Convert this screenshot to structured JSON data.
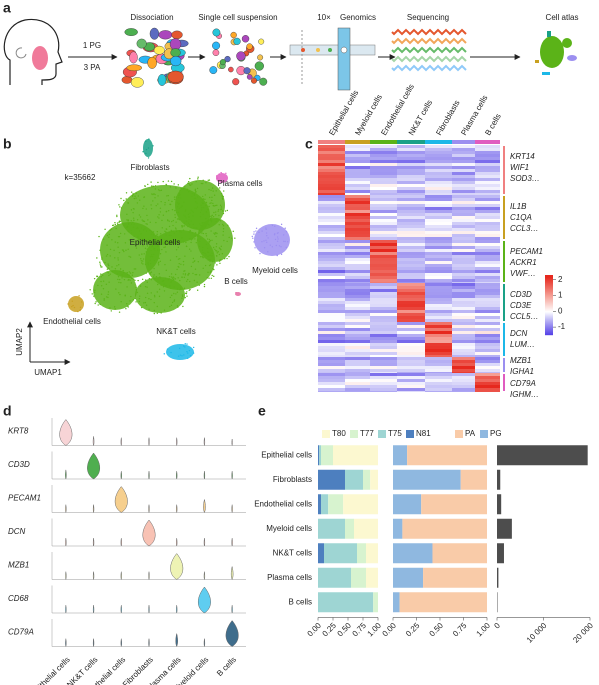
{
  "figure": {
    "panel_labels": [
      "a",
      "b",
      "c",
      "d",
      "e"
    ],
    "a": {
      "groups": [
        "1 PG",
        "3 PA"
      ],
      "steps": [
        "Dissociation",
        "Single cell suspension",
        "10×",
        "Genomics",
        "Sequencing",
        "Cell atlas"
      ]
    },
    "b": {
      "count_label": "k=35662",
      "x_label": "UMAP1",
      "y_label": "UMAP2",
      "clusters": [
        {
          "name": "Fibroblasts",
          "color": "#1aa187"
        },
        {
          "name": "Plasma cells",
          "color": "#e05cc0"
        },
        {
          "name": "Epithelial cells",
          "color": "#5bb318"
        },
        {
          "name": "Myeloid cells",
          "color": "#9c8ff0"
        },
        {
          "name": "B cells",
          "color": "#e46aa0"
        },
        {
          "name": "Endothelial cells",
          "color": "#c8a020"
        },
        {
          "name": "NK&T cells",
          "color": "#1cb8e8"
        }
      ]
    },
    "c": {
      "columns": [
        {
          "name": "Epithelial cells",
          "color": "#f08080"
        },
        {
          "name": "Myeloid cells",
          "color": "#c8a020"
        },
        {
          "name": "Endothelial cells",
          "color": "#5bb318"
        },
        {
          "name": "NK&T cells",
          "color": "#1aa187"
        },
        {
          "name": "Fibroblasts",
          "color": "#1cb8e8"
        },
        {
          "name": "Plasma cells",
          "color": "#9c8ff0"
        },
        {
          "name": "B cells",
          "color": "#e05cc0"
        }
      ],
      "genes": [
        [
          "KRT14",
          "WIF1",
          "SOD3…"
        ],
        [
          "IL1B",
          "C1QA",
          "CCL3…"
        ],
        [
          "PECAM1",
          "ACKR1",
          "VWF…"
        ],
        [
          "CD3D",
          "CD3E",
          "CCL5…"
        ],
        [
          "DCN",
          "LUM…"
        ],
        [
          "MZB1",
          "IGHA1"
        ],
        [
          "CD79A",
          "IGHM…"
        ]
      ],
      "scale_ticks": [
        2,
        1,
        0,
        -1
      ]
    }
  },
  "chart_data": [
    {
      "type": "violin",
      "categories": [
        "Epithelial cells",
        "NK&T cells",
        "Endothelial cells",
        "Fibroblasts",
        "Plasma cells",
        "Myeloid cells",
        "B cells"
      ],
      "series": [
        {
          "name": "KRT8",
          "color": "#f7d4d6",
          "values": [
            1,
            0.35,
            0.3,
            0.3,
            0.3,
            0.3,
            0.25
          ]
        },
        {
          "name": "CD3D",
          "color": "#4fae4f",
          "values": [
            0.35,
            1,
            0.3,
            0.3,
            0.3,
            0.3,
            0.3
          ]
        },
        {
          "name": "PECAM1",
          "color": "#f6cf8e",
          "values": [
            0.3,
            0.3,
            1,
            0.3,
            0.3,
            0.5,
            0.3
          ]
        },
        {
          "name": "DCN",
          "color": "#f8c2b4",
          "values": [
            0.3,
            0.3,
            0.3,
            1,
            0.3,
            0.3,
            0.3
          ]
        },
        {
          "name": "MZB1",
          "color": "#eef3b4",
          "values": [
            0.3,
            0.3,
            0.3,
            0.3,
            1,
            0.3,
            0.5
          ]
        },
        {
          "name": "CD68",
          "color": "#5fcdf0",
          "values": [
            0.3,
            0.3,
            0.3,
            0.3,
            0.3,
            1,
            0.3
          ]
        },
        {
          "name": "CD79A",
          "color": "#3f6d8c",
          "values": [
            0.3,
            0.3,
            0.3,
            0.3,
            0.5,
            0.3,
            1
          ]
        }
      ]
    },
    {
      "type": "bar_panels",
      "categories": [
        "Epithelial cells",
        "Fibroblasts",
        "Endothelial cells",
        "Myeloid cells",
        "NK&T cells",
        "Plasma cells",
        "B cells"
      ],
      "panels": [
        {
          "stacked": true,
          "xlim": [
            0,
            1
          ],
          "xticks": [
            {
              "value": 0,
              "label": "0.00"
            },
            {
              "value": 0.25,
              "label": "0.25"
            },
            {
              "value": 0.5,
              "label": "0.50"
            },
            {
              "value": 0.75,
              "label": "0.75"
            },
            {
              "value": 1,
              "label": "1.00"
            }
          ],
          "series": [
            {
              "name": "N81",
              "color": "#4d7fbf",
              "values": [
                0.02,
                0.45,
                0.05,
                0,
                0.1,
                0,
                0
              ]
            },
            {
              "name": "T75",
              "color": "#9ed5d3",
              "values": [
                0.03,
                0.3,
                0.12,
                0.45,
                0.55,
                0.55,
                0.92
              ]
            },
            {
              "name": "T77",
              "color": "#d7f3cf",
              "values": [
                0.2,
                0.12,
                0.25,
                0.15,
                0.15,
                0.25,
                0.08
              ]
            },
            {
              "name": "T80",
              "color": "#fcf8d0",
              "values": [
                0.75,
                0.13,
                0.58,
                0.4,
                0.2,
                0.2,
                0
              ]
            }
          ]
        },
        {
          "stacked": true,
          "xlim": [
            0,
            1
          ],
          "xticks": [
            {
              "value": 0,
              "label": "0.00"
            },
            {
              "value": 0.25,
              "label": "0.25"
            },
            {
              "value": 0.5,
              "label": "0.50"
            },
            {
              "value": 0.75,
              "label": "0.75"
            },
            {
              "value": 1,
              "label": "1.00"
            }
          ],
          "series": [
            {
              "name": "PG",
              "color": "#8fb8e0",
              "values": [
                0.15,
                0.72,
                0.3,
                0.1,
                0.42,
                0.32,
                0.07
              ]
            },
            {
              "name": "PA",
              "color": "#f9cba8",
              "values": [
                0.85,
                0.28,
                0.7,
                0.9,
                0.58,
                0.68,
                0.93
              ]
            }
          ]
        },
        {
          "stacked": false,
          "xlim": [
            0,
            20000
          ],
          "xticks": [
            0,
            {
              "value": 10000,
              "label": "10 000"
            },
            {
              "value": 20000,
              "label": "20 000"
            }
          ],
          "series": [
            {
              "color": "#4d4d4d",
              "values": [
                19500,
                700,
                900,
                3200,
                1500,
                300,
                100
              ]
            }
          ]
        }
      ]
    }
  ]
}
